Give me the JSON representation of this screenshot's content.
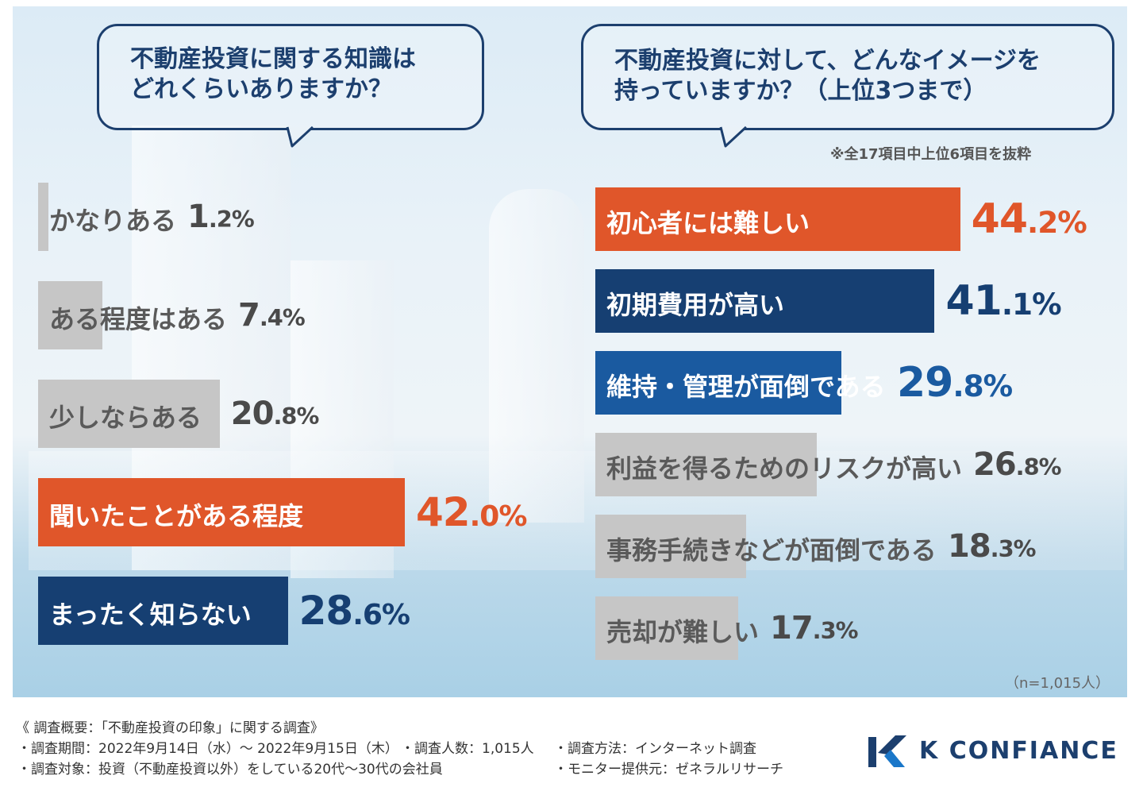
{
  "left_chart": {
    "question": "不動産投資に関する知識は\nどれくらいありますか？",
    "items": [
      {
        "label": "かなりある",
        "value": 1.2,
        "int": "1",
        "dec": ".2%",
        "style": "gray"
      },
      {
        "label": "ある程度はある",
        "value": 7.4,
        "int": "7",
        "dec": ".4%",
        "style": "gray"
      },
      {
        "label": "少しならある",
        "value": 20.8,
        "int": "20",
        "dec": ".8%",
        "style": "gray"
      },
      {
        "label": "聞いたことがある程度",
        "value": 42.0,
        "int": "42",
        "dec": ".0%",
        "style": "orange"
      },
      {
        "label": "まったく知らない",
        "value": 28.6,
        "int": "28",
        "dec": ".6%",
        "style": "navy"
      }
    ]
  },
  "right_chart": {
    "question": "不動産投資に対して、どんなイメージを\n持っていますか？（上位3つまで）",
    "note": "※全17項目中上位6項目を抜粋",
    "sample": "（n=1,015人）",
    "items": [
      {
        "label": "初心者には難しい",
        "value": 44.2,
        "int": "44",
        "dec": ".2%",
        "style": "orange"
      },
      {
        "label": "初期費用が高い",
        "value": 41.1,
        "int": "41",
        "dec": ".1%",
        "style": "navy"
      },
      {
        "label": "維持・管理が面倒である",
        "value": 29.8,
        "int": "29",
        "dec": ".8%",
        "style": "blue"
      },
      {
        "label": "利益を得るためのリスクが高い",
        "value": 26.8,
        "int": "26",
        "dec": ".8%",
        "style": "gray"
      },
      {
        "label": "事務手続きなどが面倒である",
        "value": 18.3,
        "int": "18",
        "dec": ".3%",
        "style": "gray"
      },
      {
        "label": "売却が難しい",
        "value": 17.3,
        "int": "17",
        "dec": ".3%",
        "style": "gray"
      }
    ]
  },
  "chart_data": [
    {
      "type": "bar",
      "title": "不動産投資に関する知識はどれくらいありますか？",
      "categories": [
        "かなりある",
        "ある程度はある",
        "少しならある",
        "聞いたことがある程度",
        "まったく知らない"
      ],
      "values": [
        1.2,
        7.4,
        20.8,
        42.0,
        28.6
      ],
      "unit": "%"
    },
    {
      "type": "bar",
      "title": "不動産投資に対して、どんなイメージを持っていますか？（上位3つまで）",
      "categories": [
        "初心者には難しい",
        "初期費用が高い",
        "維持・管理が面倒である",
        "利益を得るためのリスクが高い",
        "事務手続きなどが面倒である",
        "売却が難しい"
      ],
      "values": [
        44.2,
        41.1,
        29.8,
        26.8,
        18.3,
        17.3
      ],
      "unit": "%"
    }
  ],
  "footer": {
    "line1": "《 調査概要：「不動産投資の印象」に関する調査》",
    "line2a": "・調査期間：2022年9月14日（水）～ 2022年9月15日（木）",
    "line2b": "・調査人数：1,015人",
    "line2c": "・調査方法：インターネット調査",
    "line3a": "・調査対象：投資（不動産投資以外）をしている20代～30代の会社員",
    "line3c": "・モニター提供元：ゼネラルリサーチ",
    "logo_text": "K CONFIANCE"
  },
  "colors": {
    "orange": "#e0562a",
    "navy": "#163f72",
    "blue": "#1a5aa0",
    "gray": "#c6c6c6",
    "gray_text": "#5a5a5a",
    "gray_value": "#4a4a4a"
  }
}
